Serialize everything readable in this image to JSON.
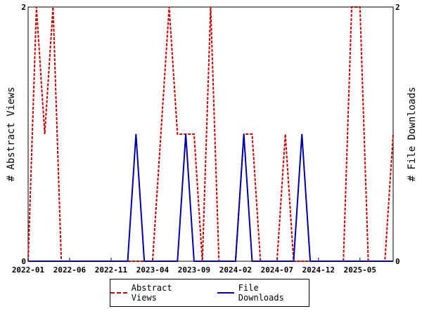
{
  "chart_data": {
    "type": "line",
    "x": [
      "2022-01",
      "2022-02",
      "2022-03",
      "2022-04",
      "2022-05",
      "2022-06",
      "2022-07",
      "2022-08",
      "2022-09",
      "2022-10",
      "2022-11",
      "2022-12",
      "2023-01",
      "2023-02",
      "2023-03",
      "2023-04",
      "2023-05",
      "2023-06",
      "2023-07",
      "2023-08",
      "2023-09",
      "2023-10",
      "2023-11",
      "2023-12",
      "2024-01",
      "2024-02",
      "2024-03",
      "2024-04",
      "2024-05",
      "2024-06",
      "2024-07",
      "2024-08",
      "2024-09",
      "2024-10",
      "2024-11",
      "2024-12",
      "2025-01",
      "2025-02",
      "2025-03",
      "2025-04",
      "2025-05",
      "2025-06",
      "2025-07",
      "2025-08",
      "2025-09"
    ],
    "x_ticks": [
      "2022-01",
      "2022-06",
      "2022-11",
      "2023-04",
      "2023-09",
      "2024-02",
      "2024-07",
      "2024-12",
      "2025-05"
    ],
    "series": [
      {
        "name": "Abstract Views",
        "color": "#cc0000",
        "style": "dashed",
        "axis": "left",
        "values": [
          0,
          2,
          1,
          2,
          0,
          0,
          0,
          0,
          0,
          0,
          0,
          0,
          0,
          0,
          0,
          0,
          1,
          2,
          1,
          1,
          1,
          0,
          2,
          0,
          0,
          0,
          1,
          1,
          0,
          0,
          0,
          1,
          0,
          0,
          0,
          0,
          0,
          0,
          0,
          2,
          2,
          0,
          0,
          0,
          1
        ]
      },
      {
        "name": "File Downloads",
        "color": "#0000aa",
        "style": "solid",
        "axis": "right",
        "values": [
          0,
          0,
          0,
          0,
          0,
          0,
          0,
          0,
          0,
          0,
          0,
          0,
          0,
          1,
          0,
          0,
          0,
          0,
          0,
          1,
          0,
          0,
          0,
          0,
          0,
          0,
          1,
          0,
          0,
          0,
          0,
          0,
          0,
          1,
          0,
          0,
          0,
          0,
          0,
          0,
          0,
          0,
          0,
          0,
          0
        ]
      }
    ],
    "ylabel": "# Abstract Views",
    "ylabel_right": "# File Downloads",
    "ylim": [
      0,
      2
    ],
    "y_ticks": [
      "0",
      "2"
    ],
    "y_ticks_right": [
      "0",
      "2"
    ],
    "legend_position": "bottom",
    "grid": false
  }
}
